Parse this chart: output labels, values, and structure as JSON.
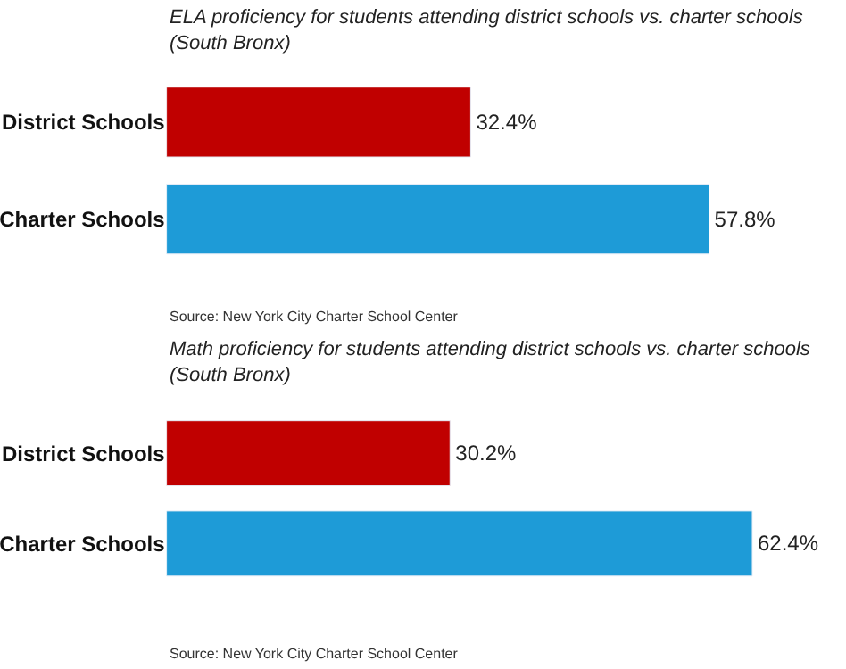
{
  "chart_data": [
    {
      "type": "bar",
      "orientation": "horizontal",
      "title": "ELA proficiency for students attending district schools vs. charter schools (South Bronx)",
      "categories": [
        "District Schools",
        "Charter Schools"
      ],
      "values": [
        32.4,
        57.8
      ],
      "colors": [
        "#c00000",
        "#1e9bd7"
      ],
      "value_labels": [
        "32.4%",
        "57.8%"
      ],
      "annotations": [
        "Source: New York City Charter School Center"
      ]
    },
    {
      "type": "bar",
      "orientation": "horizontal",
      "title": "Math proficiency for students attending district schools vs. charter schools (South Bronx)",
      "categories": [
        "District Schools",
        "Charter Schools"
      ],
      "values": [
        30.2,
        62.4
      ],
      "colors": [
        "#c00000",
        "#1e9bd7"
      ],
      "value_labels": [
        "30.2%",
        "62.4%"
      ],
      "annotations": [
        "Source: New York City Charter School Center"
      ]
    }
  ]
}
